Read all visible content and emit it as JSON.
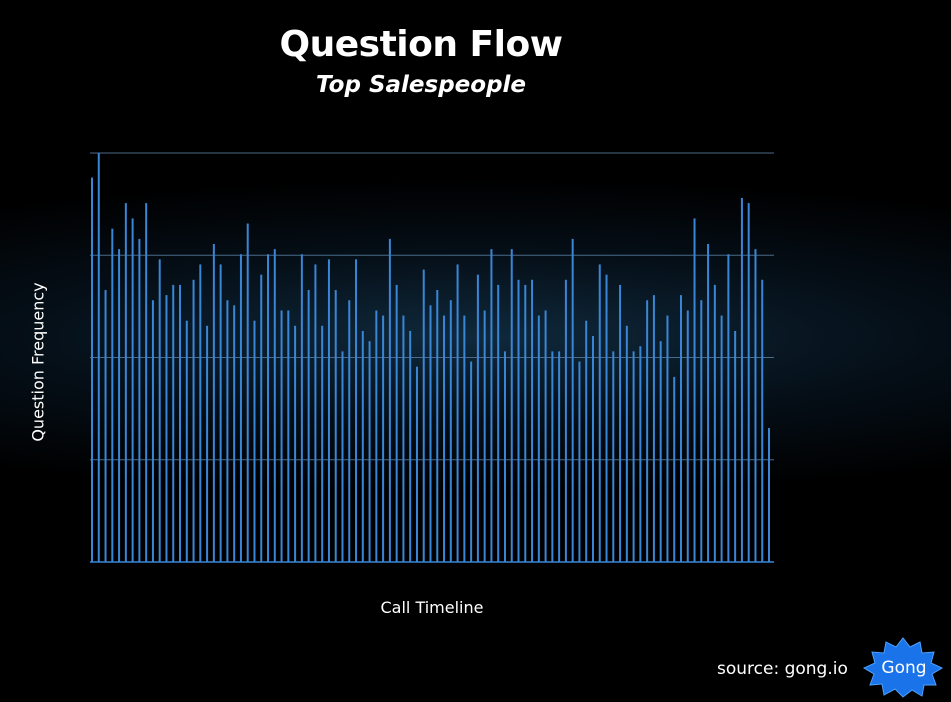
{
  "title": "Question Flow",
  "subtitle": "Top Salespeople",
  "source": "source: gong.io",
  "logo_text": "Gong",
  "colors": {
    "background": "#000000",
    "bar": "#3a86d6",
    "grid": "#4a6a88",
    "logo": "#1a73e8"
  },
  "chart_data": {
    "type": "bar",
    "title": "Question Flow",
    "subtitle": "Top Salespeople",
    "xlabel": "Call Timeline",
    "ylabel": "Question Frequency",
    "ylim": [
      0,
      4
    ],
    "grid": true,
    "tick_labels_shown": false,
    "values": [
      3.76,
      4.0,
      2.66,
      3.26,
      3.06,
      3.51,
      3.36,
      3.16,
      3.51,
      2.56,
      2.96,
      2.61,
      2.71,
      2.71,
      2.36,
      2.76,
      2.91,
      2.31,
      3.11,
      2.91,
      2.56,
      2.51,
      3.01,
      3.31,
      2.36,
      2.81,
      3.01,
      3.06,
      2.46,
      2.46,
      2.31,
      3.01,
      2.66,
      2.91,
      2.31,
      2.96,
      2.66,
      2.06,
      2.56,
      2.96,
      2.26,
      2.16,
      2.46,
      2.41,
      3.16,
      2.71,
      2.41,
      2.26,
      1.91,
      2.86,
      2.51,
      2.66,
      2.41,
      2.56,
      2.91,
      2.41,
      1.96,
      2.81,
      2.46,
      3.06,
      2.71,
      2.06,
      3.06,
      2.76,
      2.71,
      2.76,
      2.41,
      2.46,
      2.06,
      2.06,
      2.76,
      3.16,
      1.96,
      2.36,
      2.21,
      2.91,
      2.81,
      2.06,
      2.71,
      2.31,
      2.06,
      2.11,
      2.56,
      2.61,
      2.16,
      2.41,
      1.81,
      2.61,
      2.46,
      3.36,
      2.56,
      3.11,
      2.71,
      2.41,
      3.01,
      2.26,
      3.56,
      3.51,
      3.06,
      2.76,
      1.31
    ]
  }
}
